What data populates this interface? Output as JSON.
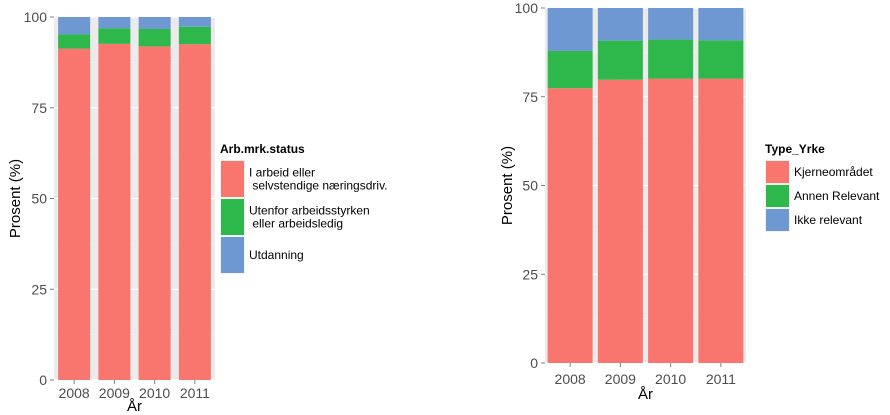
{
  "chart_data": [
    {
      "type": "bar",
      "stacked": true,
      "categories": [
        "2008",
        "2009",
        "2010",
        "2011"
      ],
      "xlabel": "År",
      "ylabel": "Prosent (%)",
      "ylim": [
        0,
        100
      ],
      "yticks": [
        0,
        25,
        50,
        75,
        100
      ],
      "grid": true,
      "legend": {
        "title": "Arb.mrk.status",
        "position": "right",
        "entries": [
          {
            "lines": [
              "I arbeid eller",
              " selvstendige næringsdriv."
            ],
            "color": "#F8766D"
          },
          {
            "lines": [
              "Utenfor arbeidsstyrken",
              " eller arbeidsledig"
            ],
            "color": "#2EB84B"
          },
          {
            "lines": [
              "Utdanning"
            ],
            "color": "#6E98D2"
          }
        ]
      },
      "series": [
        {
          "name": "I arbeid eller selvstendige næringsdriv.",
          "color": "#F8766D",
          "values": [
            91.3,
            92.6,
            91.9,
            92.5
          ]
        },
        {
          "name": "Utenfor arbeidsstyrken eller arbeidsledig",
          "color": "#2EB84B",
          "values": [
            3.9,
            4.3,
            4.8,
            4.8
          ]
        },
        {
          "name": "Utdanning",
          "color": "#6E98D2",
          "values": [
            4.8,
            3.1,
            3.3,
            2.7
          ]
        }
      ]
    },
    {
      "type": "bar",
      "stacked": true,
      "categories": [
        "2008",
        "2009",
        "2010",
        "2011"
      ],
      "xlabel": "År",
      "ylabel": "Prosent (%)",
      "ylim": [
        0,
        100
      ],
      "yticks": [
        0,
        25,
        50,
        75,
        100
      ],
      "grid": true,
      "legend": {
        "title": "Type_Yrke",
        "position": "right",
        "entries": [
          {
            "lines": [
              "Kjerneområdet"
            ],
            "color": "#F8766D"
          },
          {
            "lines": [
              "Annen Relevant"
            ],
            "color": "#2EB84B"
          },
          {
            "lines": [
              "Ikke relevant"
            ],
            "color": "#6E98D2"
          }
        ]
      },
      "series": [
        {
          "name": "Kjerneområdet",
          "color": "#F8766D",
          "values": [
            77.4,
            79.8,
            80.1,
            80.1
          ]
        },
        {
          "name": "Annen Relevant",
          "color": "#2EB84B",
          "values": [
            10.5,
            11.0,
            11.0,
            10.8
          ]
        },
        {
          "name": "Ikke relevant",
          "color": "#6E98D2",
          "values": [
            12.1,
            9.2,
            8.9,
            9.1
          ]
        }
      ]
    }
  ]
}
